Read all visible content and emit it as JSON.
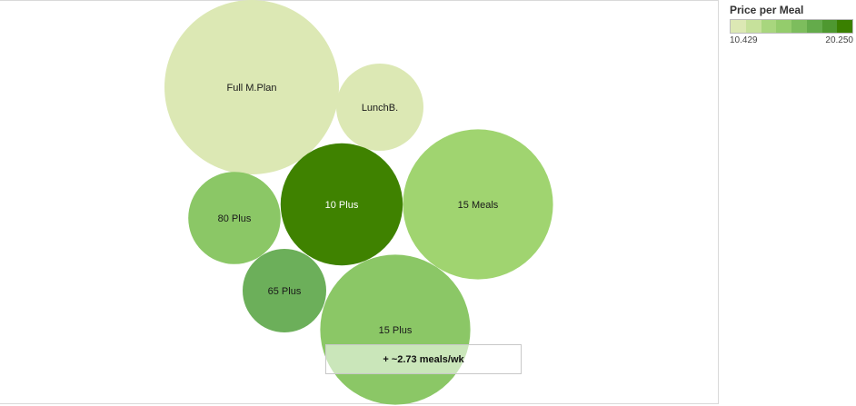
{
  "chart_data": {
    "type": "bubble",
    "size_by": "",
    "color_by": "Price per Meal",
    "bubbles": [
      {
        "label": "Full M.Plan",
        "color": "#dce8b4",
        "value": 1.0
      },
      {
        "label": "LunchB.",
        "color": "#dce8b4",
        "value": 0.25
      },
      {
        "label": "10 Plus",
        "color": "#3f8200",
        "value": 0.49
      },
      {
        "label": "15 Meals",
        "color": "#a0d470",
        "value": 0.74
      },
      {
        "label": "80 Plus",
        "color": "#8bc766",
        "value": 0.28
      },
      {
        "label": "65 Plus",
        "color": "#6caf5a",
        "value": 0.23
      },
      {
        "label": "15 Plus",
        "color": "#8bc766",
        "value": 0.74
      }
    ],
    "legend": {
      "title": "Price per Meal",
      "min": "10.429",
      "max": "20.250",
      "colors": [
        "#dce8b4",
        "#c6e19b",
        "#a8d67e",
        "#94cc6c",
        "#7dbd5d",
        "#64ab4b",
        "#4e9830",
        "#3a8000"
      ]
    }
  },
  "tooltip": {
    "text": "+ ~2.73 meals/wk"
  }
}
